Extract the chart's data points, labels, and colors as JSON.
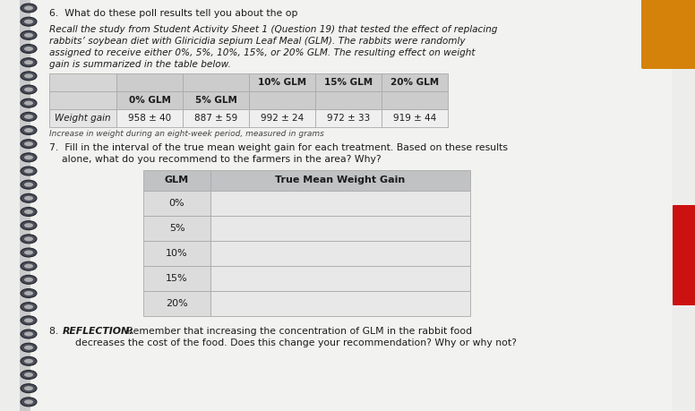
{
  "page_bg": "#ededec",
  "content_bg": "#f0f0ee",
  "text_color": "#1c1c1c",
  "italic_color": "#2a2a2a",
  "spiral_color": "#2a2d3a",
  "table_header_bg": "#c8c8c8",
  "table_data_bg": "#efefef",
  "table_row_label_bg": "#e2e2e2",
  "table_line_color": "#aaaaaa",
  "table2_header_bg": "#c0c2c4",
  "table2_col1_bg": "#dcdcdc",
  "table2_col2_bg": "#e8e8e8",
  "orange_color": "#d4820a",
  "red_color": "#cc1111",
  "q6_text": "6.  What do these poll results tell you about the op",
  "para_text_line1": "Recall the study from Student Activity Sheet 1 (Question 19) that tested the effect of replacing",
  "para_text_line2": "rabbits’ soybean diet with Gliricidia sepium Leaf Meal (GLM). The rabbits were randomly",
  "para_text_line3": "assigned to receive either 0%, 5%, 10%, 15%, or 20% GLM. The resulting effect on weight",
  "para_text_line4": "gain is summarized in the table below.",
  "t1_headers": [
    "0% GLM",
    "5% GLM",
    "10% GLM",
    "15% GLM",
    "20% GLM"
  ],
  "t1_row_label": "Weight gain",
  "t1_row_data": [
    "958 ± 40",
    "887 ± 59",
    "992 ± 24",
    "972 ± 33",
    "919 ± 44"
  ],
  "t1_footnote": "Increase in weight during an eight-week period, measured in grams",
  "q7_line1": "7.  Fill in the interval of the true mean weight gain for each treatment. Based on these results",
  "q7_line2": "    alone, what do you recommend to the farmers in the area? Why?",
  "t2_col1_header": "GLM",
  "t2_col2_header": "True Mean Weight Gain",
  "t2_rows": [
    "0%",
    "5%",
    "10%",
    "15%",
    "20%"
  ],
  "q8_number": "8.  ",
  "q8_bold": "REFLECTION:",
  "q8_rest_line1": " Remember that increasing the concentration of GLM in the rabbit food",
  "q8_rest_line2": "    decreases the cost of the food. Does this change your recommendation? Why or why not?"
}
